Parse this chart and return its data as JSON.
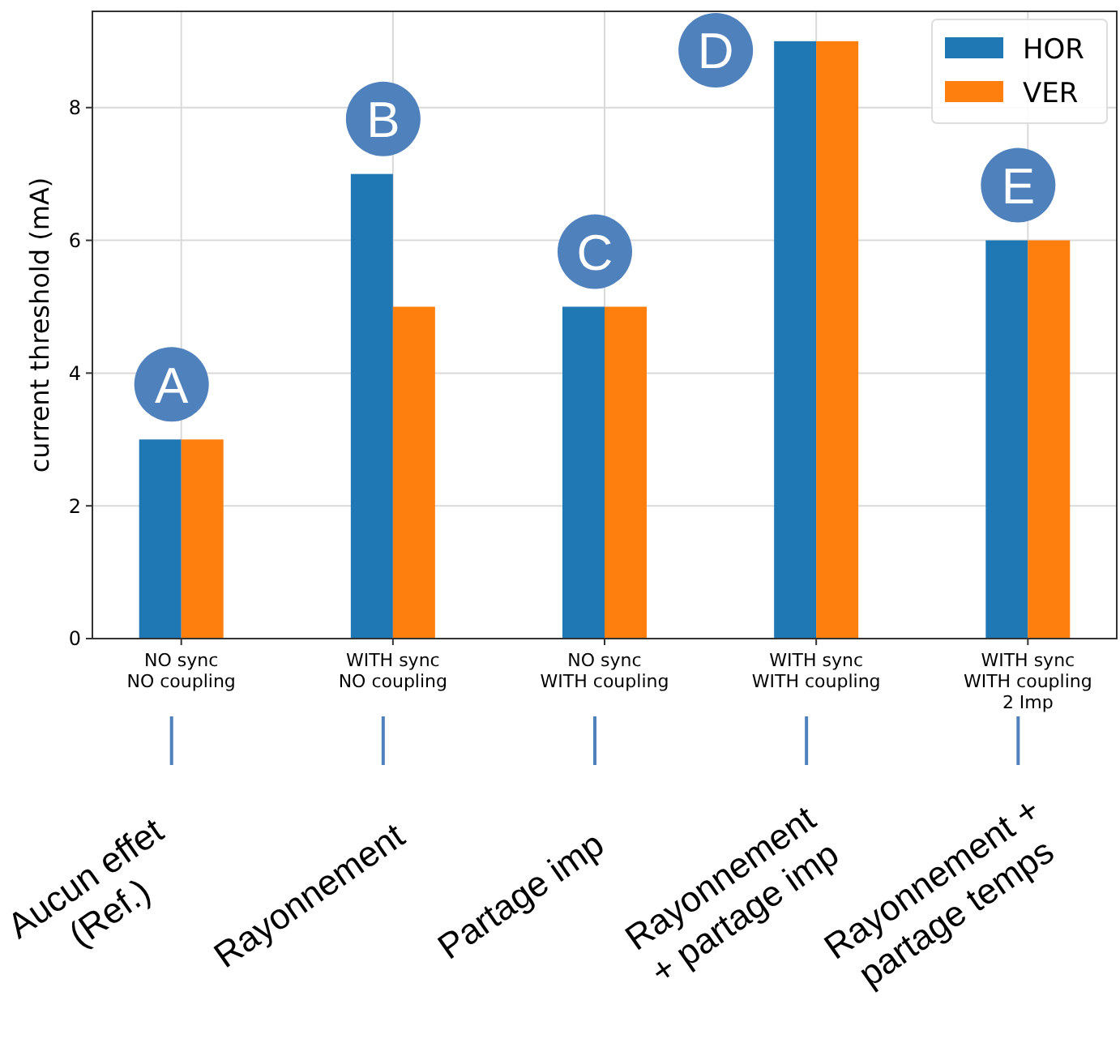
{
  "chart_data": {
    "type": "bar",
    "ylabel": "current threshold (mA)",
    "categories": [
      "NO sync\nNO coupling",
      "WITH sync\nNO coupling",
      "NO sync\nWITH coupling",
      "WITH sync\nWITH coupling",
      "WITH sync\nWITH coupling\n2 Imp"
    ],
    "series": [
      {
        "name": "HOR",
        "color": "#1f77b4",
        "values": [
          3,
          7,
          5,
          9,
          6
        ]
      },
      {
        "name": "VER",
        "color": "#ff7f0e",
        "values": [
          3,
          5,
          5,
          9,
          6
        ]
      }
    ],
    "ylim": [
      0,
      9.45
    ],
    "yticks": [
      0,
      2,
      4,
      6,
      8
    ],
    "grid": true,
    "legend": "top right",
    "annotations": [
      "A",
      "B",
      "C",
      "D",
      "E",
      "Aucun effet\n(Ref.)",
      "Rayonnement",
      "Partage imp",
      "Rayonnement\n+ partage imp",
      "Rayonnement +\npartage temps"
    ]
  }
}
